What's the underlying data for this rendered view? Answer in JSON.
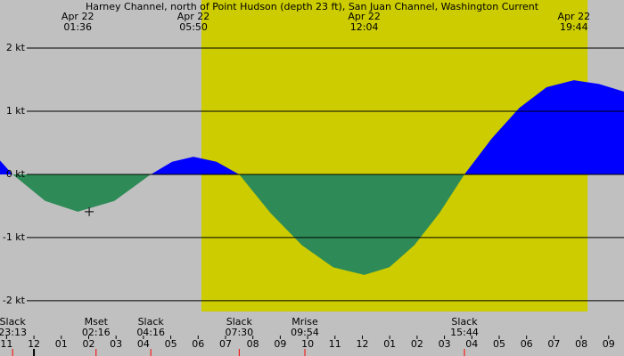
{
  "chart_data": {
    "type": "area",
    "title": "Harney Channel, north of Point Hudson (depth 23 ft), San Juan Channel, Washington Current",
    "x": [
      -1.24,
      -0.78,
      0.41,
      1.6,
      2.94,
      4.27,
      5.05,
      5.83,
      6.67,
      7.5,
      8.64,
      9.79,
      10.93,
      12.07,
      12.99,
      13.9,
      14.82,
      15.73,
      16.73,
      17.73,
      18.73,
      19.73,
      20.65,
      21.56
    ],
    "values": [
      0.22,
      0,
      -0.42,
      -0.59,
      -0.42,
      0,
      0.2,
      0.28,
      0.2,
      0,
      -0.61,
      -1.12,
      -1.47,
      -1.59,
      -1.47,
      -1.12,
      -0.61,
      0,
      0.57,
      1.05,
      1.38,
      1.49,
      1.43,
      1.31
    ],
    "flood_color": "#0000ff",
    "ebb_color": "#2e8b57",
    "background_color": "#c0c0c0",
    "daylight_color": "#cccc00",
    "daylight": [
      6.12,
      20.23
    ],
    "xlim": [
      -1.24,
      21.56
    ],
    "ylim": [
      -2.17,
      2.76
    ],
    "yticks": [
      {
        "value": 2,
        "label": "2 kt"
      },
      {
        "value": 1,
        "label": "1 kt"
      },
      {
        "value": 0,
        "label": "0 kt"
      },
      {
        "value": -1,
        "label": "-1 kt"
      },
      {
        "value": -2,
        "label": "-2 kt"
      }
    ],
    "xticks": [
      {
        "value": -1,
        "label": "11"
      },
      {
        "value": 0,
        "label": "12"
      },
      {
        "value": 1,
        "label": "01"
      },
      {
        "value": 2,
        "label": "02"
      },
      {
        "value": 3,
        "label": "03"
      },
      {
        "value": 4,
        "label": "04"
      },
      {
        "value": 5,
        "label": "05"
      },
      {
        "value": 6,
        "label": "06"
      },
      {
        "value": 7,
        "label": "07"
      },
      {
        "value": 8,
        "label": "08"
      },
      {
        "value": 9,
        "label": "09"
      },
      {
        "value": 10,
        "label": "10"
      },
      {
        "value": 11,
        "label": "11"
      },
      {
        "value": 12,
        "label": "12"
      },
      {
        "value": 13,
        "label": "01"
      },
      {
        "value": 14,
        "label": "02"
      },
      {
        "value": 15,
        "label": "03"
      },
      {
        "value": 16,
        "label": "04"
      },
      {
        "value": 17,
        "label": "05"
      },
      {
        "value": 18,
        "label": "06"
      },
      {
        "value": 19,
        "label": "07"
      },
      {
        "value": 20,
        "label": "08"
      },
      {
        "value": 21,
        "label": "09"
      }
    ],
    "peaks": [
      {
        "date": "Apr 22",
        "time": "01:36",
        "x": 1.6
      },
      {
        "date": "Apr 22",
        "time": "05:50",
        "x": 5.83
      },
      {
        "date": "Apr 22",
        "time": "12:04",
        "x": 12.07
      },
      {
        "date": "Apr 22",
        "time": "19:44",
        "x": 19.73
      }
    ],
    "events": [
      {
        "label": "Slack",
        "time": "23:13",
        "x": -0.78
      },
      {
        "label": "Mset",
        "time": "02:16",
        "x": 2.27
      },
      {
        "label": "Slack",
        "time": "04:16",
        "x": 4.27
      },
      {
        "label": "Slack",
        "time": "07:30",
        "x": 7.5
      },
      {
        "label": "Mrise",
        "time": "09:54",
        "x": 9.9
      },
      {
        "label": "Slack",
        "time": "15:44",
        "x": 15.73
      }
    ],
    "midnight": 0,
    "marker": {
      "x": 2.02,
      "y": -0.59
    }
  }
}
